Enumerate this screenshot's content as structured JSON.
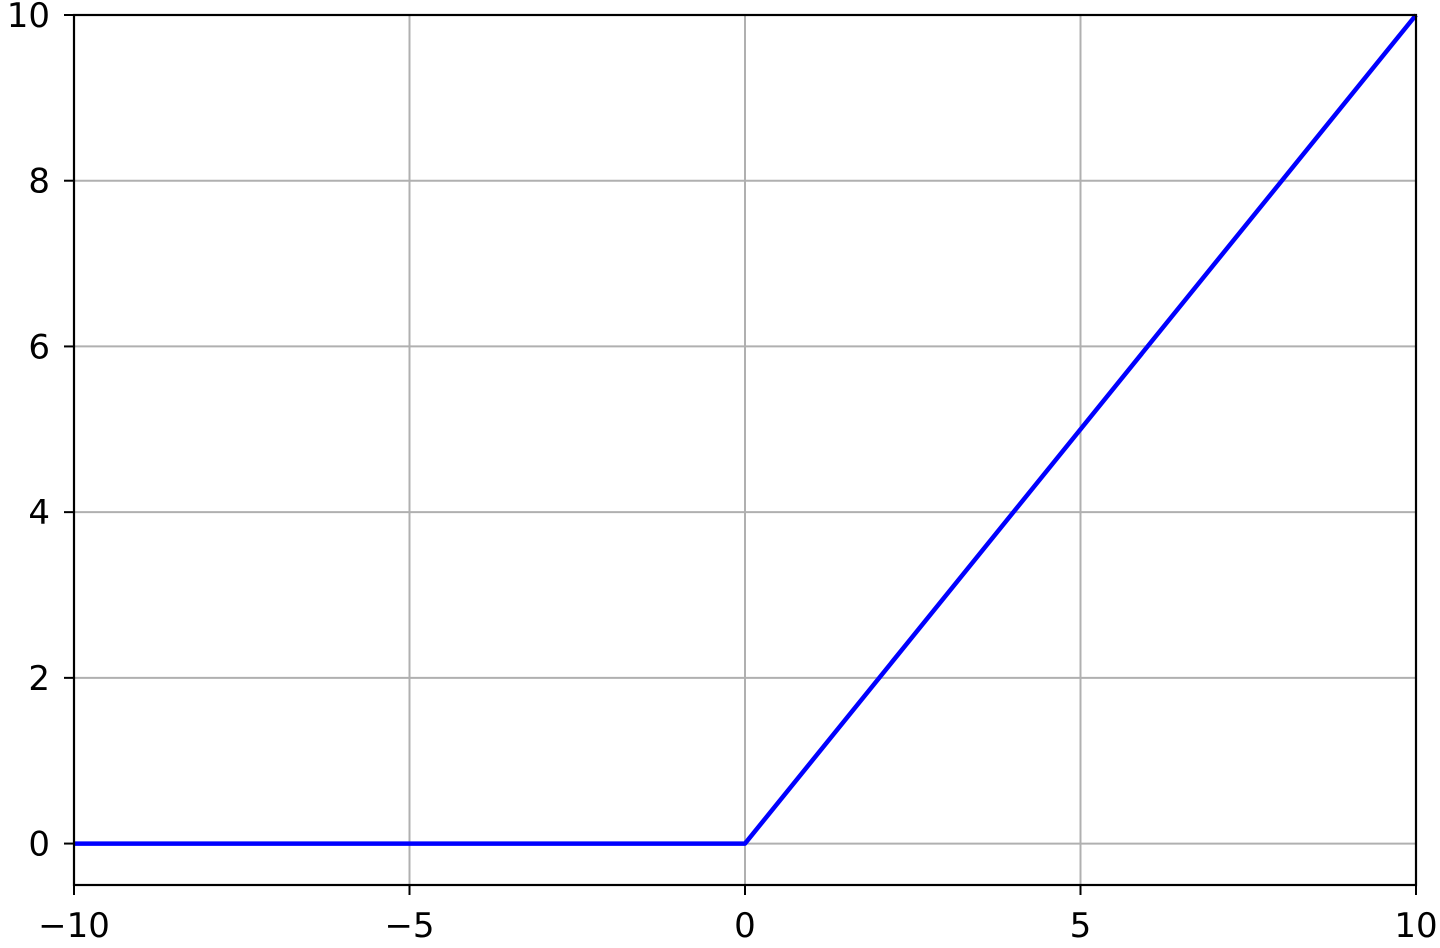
{
  "chart_data": {
    "type": "line",
    "title": "",
    "xlabel": "",
    "ylabel": "",
    "xlim": [
      -10,
      10
    ],
    "ylim": [
      -0.5,
      10
    ],
    "grid": true,
    "x_ticks": [
      -10,
      -5,
      0,
      5,
      10
    ],
    "x_tick_labels": [
      "−10",
      "−5",
      "0",
      "5",
      "10"
    ],
    "y_ticks": [
      0,
      2,
      4,
      6,
      8,
      10
    ],
    "y_tick_labels": [
      "0",
      "2",
      "4",
      "6",
      "8",
      "10"
    ],
    "series": [
      {
        "x": [
          -10,
          0,
          10
        ],
        "y": [
          0,
          0,
          10
        ],
        "color": "#0000ff"
      }
    ],
    "colors": {
      "grid": "#b0b0b0",
      "axes": "#000000",
      "background": "#ffffff"
    }
  }
}
